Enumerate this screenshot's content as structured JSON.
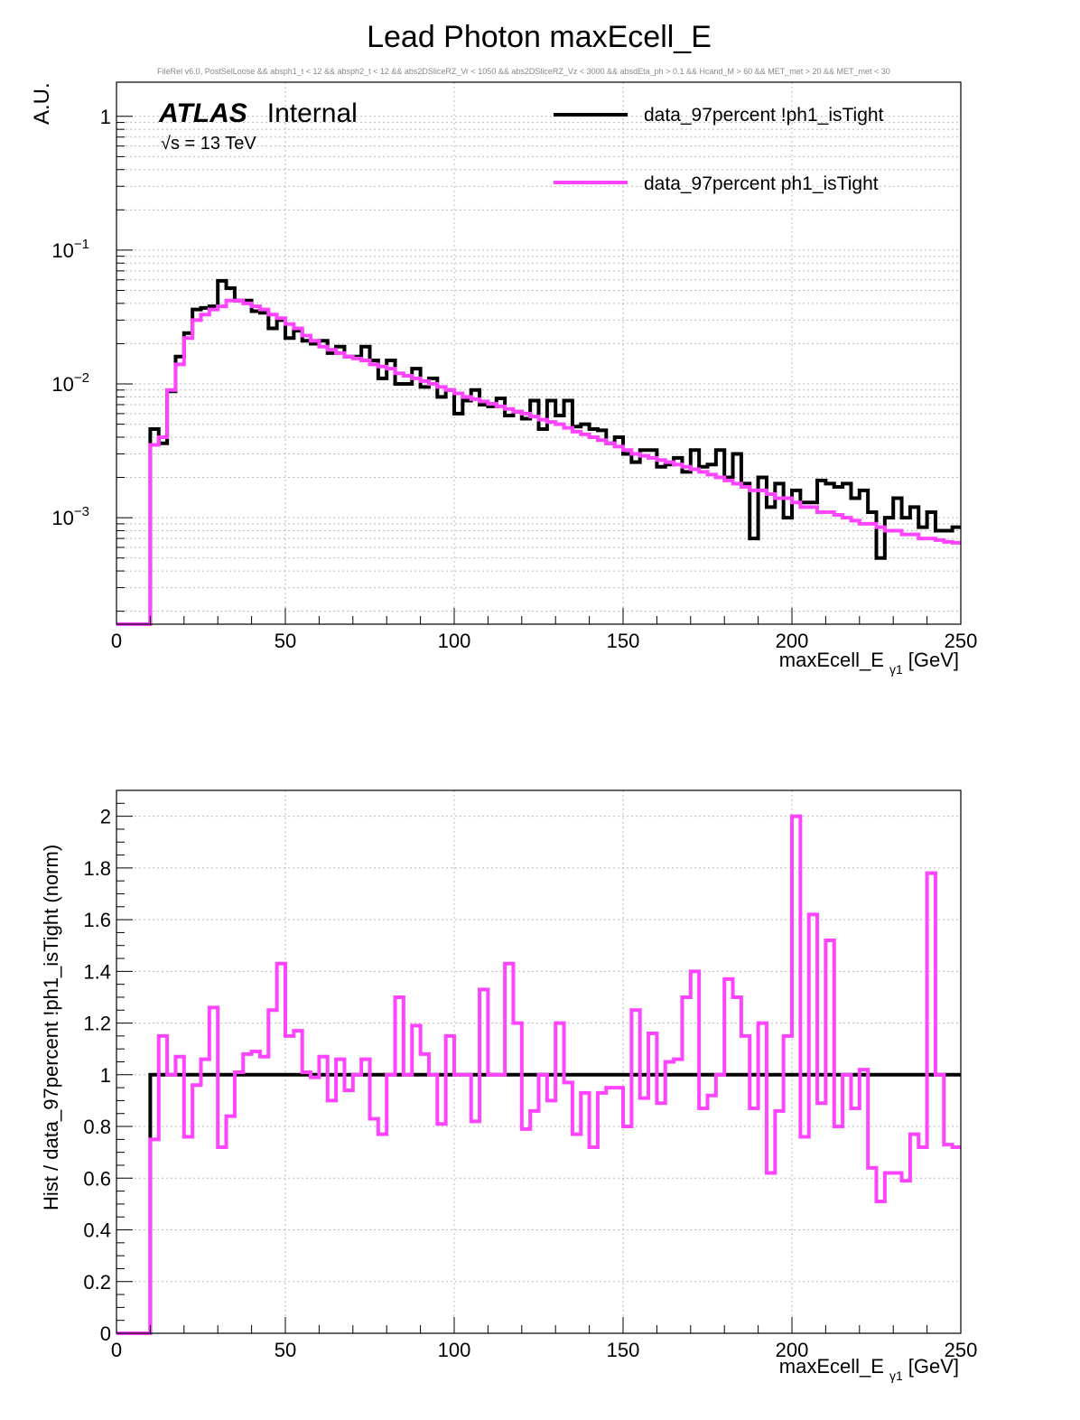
{
  "title": "Lead Photon maxEcell_E",
  "selection": "FileRel v6.0, PostSelLoose &&  absph1_t < 12 && absph2_t < 12 && abs2DSliceRZ_Vr < 1050 && abs2DSliceRZ_Vz < 3000 && absdEta_ph > 0.1 && Hcand_M > 60 && MET_met > 20 && MET_met < 30",
  "atlas": {
    "label": "ATLAS",
    "status": "Internal",
    "energy": "√s = 13 TeV"
  },
  "legend": [
    {
      "name": "data_97percent  !ph1_isTight",
      "color": "#000000"
    },
    {
      "name": "data_97percent  ph1_isTight",
      "color": "#ff44ff"
    }
  ],
  "chart_data": [
    {
      "type": "line",
      "drawstyle": "step",
      "yscale": "log",
      "title": "Lead Photon maxEcell_E",
      "xlabel_main": "maxEcell_E",
      "xlabel_sub": "γ1",
      "xlabel_unit": "[GeV]",
      "ylabel": "A.U.",
      "xlim": [
        0,
        250
      ],
      "ylim": [
        0.00016,
        1.8
      ],
      "bin_width": 2.5,
      "x_start": 0,
      "xticks": [
        0,
        50,
        100,
        150,
        200,
        250
      ],
      "yticks": [
        {
          "value": 1,
          "label": "1"
        },
        {
          "value": 0.1,
          "label": "10",
          "exp": "−1"
        },
        {
          "value": 0.01,
          "label": "10",
          "exp": "−2"
        },
        {
          "value": 0.001,
          "label": "10",
          "exp": "−3"
        }
      ],
      "series": [
        {
          "name": "data_97percent  !ph1_isTight",
          "color": "#000000",
          "values": [
            0,
            0,
            0,
            0,
            0.0046,
            0.0036,
            0.0088,
            0.016,
            0.024,
            0.036,
            0.037,
            0.038,
            0.059,
            0.052,
            0.042,
            0.042,
            0.035,
            0.034,
            0.026,
            0.03,
            0.022,
            0.025,
            0.021,
            0.02,
            0.021,
            0.017,
            0.019,
            0.016,
            0.016,
            0.019,
            0.015,
            0.011,
            0.015,
            0.01,
            0.01,
            0.013,
            0.0095,
            0.011,
            0.008,
            0.009,
            0.006,
            0.0075,
            0.009,
            0.007,
            0.0068,
            0.0078,
            0.0058,
            0.0062,
            0.0055,
            0.0075,
            0.0046,
            0.0075,
            0.0058,
            0.0075,
            0.0048,
            0.005,
            0.0046,
            0.0045,
            0.0036,
            0.004,
            0.003,
            0.0026,
            0.0032,
            0.0032,
            0.0024,
            0.0025,
            0.0028,
            0.0022,
            0.0032,
            0.0024,
            0.0025,
            0.0032,
            0.002,
            0.003,
            0.0018,
            0.0007,
            0.002,
            0.0012,
            0.0018,
            0.001,
            0.0016,
            0.0013,
            0.0013,
            0.0019,
            0.0018,
            0.0017,
            0.0018,
            0.0014,
            0.0016,
            0.0011,
            0.0005,
            0.001,
            0.0014,
            0.001,
            0.0012,
            0.00085,
            0.0011,
            0.0008,
            0.0008,
            0.00085
          ]
        },
        {
          "name": "data_97percent  ph1_isTight",
          "color": "#ff44ff",
          "values": [
            0,
            0,
            0,
            0,
            0.0035,
            0.004,
            0.009,
            0.014,
            0.022,
            0.03,
            0.033,
            0.036,
            0.038,
            0.042,
            0.042,
            0.04,
            0.038,
            0.036,
            0.033,
            0.031,
            0.028,
            0.026,
            0.023,
            0.021,
            0.019,
            0.018,
            0.017,
            0.016,
            0.0155,
            0.015,
            0.014,
            0.0135,
            0.013,
            0.012,
            0.0115,
            0.011,
            0.0105,
            0.01,
            0.0095,
            0.009,
            0.0085,
            0.008,
            0.0077,
            0.0074,
            0.0071,
            0.0068,
            0.0065,
            0.0062,
            0.006,
            0.0057,
            0.0054,
            0.0052,
            0.005,
            0.0047,
            0.0044,
            0.0042,
            0.004,
            0.0038,
            0.0036,
            0.0034,
            0.0032,
            0.003,
            0.0029,
            0.0028,
            0.0027,
            0.0026,
            0.0025,
            0.0024,
            0.0023,
            0.0022,
            0.0021,
            0.002,
            0.0019,
            0.0018,
            0.0017,
            0.0016,
            0.0016,
            0.0015,
            0.0014,
            0.0014,
            0.0013,
            0.0012,
            0.0012,
            0.0011,
            0.0011,
            0.00105,
            0.001,
            0.00095,
            0.0009,
            0.0009,
            0.00085,
            0.0008,
            0.0008,
            0.00075,
            0.00075,
            0.0007,
            0.0007,
            0.00068,
            0.00066,
            0.00065
          ]
        }
      ]
    },
    {
      "type": "line",
      "drawstyle": "step",
      "xlabel_main": "maxEcell_E",
      "xlabel_sub": "γ1",
      "xlabel_unit": "[GeV]",
      "ylabel": "Hist / data_97percent  !ph1_isTight (norm)",
      "xlim": [
        0,
        250
      ],
      "ylim": [
        0,
        2.1
      ],
      "bin_width": 2.5,
      "x_start": 0,
      "xticks": [
        0,
        50,
        100,
        150,
        200,
        250
      ],
      "yticks": [
        {
          "value": 0,
          "label": "0"
        },
        {
          "value": 0.2,
          "label": "0.2"
        },
        {
          "value": 0.4,
          "label": "0.4"
        },
        {
          "value": 0.6,
          "label": "0.6"
        },
        {
          "value": 0.8,
          "label": "0.8"
        },
        {
          "value": 1,
          "label": "1"
        },
        {
          "value": 1.2,
          "label": "1.2"
        },
        {
          "value": 1.4,
          "label": "1.4"
        },
        {
          "value": 1.6,
          "label": "1.6"
        },
        {
          "value": 1.8,
          "label": "1.8"
        },
        {
          "value": 2,
          "label": "2"
        }
      ],
      "series": [
        {
          "name": "data_97percent  !ph1_isTight",
          "color": "#000000",
          "values": [
            0,
            0,
            0,
            0,
            1,
            1,
            1,
            1,
            1,
            1,
            1,
            1,
            1,
            1,
            1,
            1,
            1,
            1,
            1,
            1,
            1,
            1,
            1,
            1,
            1,
            1,
            1,
            1,
            1,
            1,
            1,
            1,
            1,
            1,
            1,
            1,
            1,
            1,
            1,
            1,
            1,
            1,
            1,
            1,
            1,
            1,
            1,
            1,
            1,
            1,
            1,
            1,
            1,
            1,
            1,
            1,
            1,
            1,
            1,
            1,
            1,
            1,
            1,
            1,
            1,
            1,
            1,
            1,
            1,
            1,
            1,
            1,
            1,
            1,
            1,
            1,
            1,
            1,
            1,
            1,
            1,
            1,
            1,
            1,
            1,
            1,
            1,
            1,
            1,
            1,
            1,
            1,
            1,
            1,
            1,
            1,
            1,
            1,
            1,
            1
          ]
        },
        {
          "name": "data_97percent  ph1_isTight",
          "color": "#ff44ff",
          "values": [
            0,
            0,
            0,
            0,
            0.75,
            1.15,
            1.0,
            1.07,
            0.76,
            0.96,
            1.06,
            1.26,
            0.72,
            0.84,
            1.01,
            1.08,
            1.09,
            1.07,
            1.25,
            1.43,
            1.15,
            1.17,
            1.01,
            0.99,
            1.07,
            0.9,
            1.06,
            0.94,
            1.0,
            1.06,
            0.83,
            0.77,
            1.0,
            1.3,
            1.0,
            1.19,
            1.08,
            1.0,
            0.81,
            1.15,
            1.0,
            1.0,
            0.82,
            1.33,
            1.0,
            1.0,
            1.43,
            1.2,
            0.79,
            0.86,
            1.0,
            0.9,
            1.2,
            0.97,
            0.77,
            0.93,
            0.72,
            0.93,
            0.95,
            0.95,
            0.8,
            1.25,
            0.91,
            1.16,
            0.89,
            1.05,
            1.06,
            1.3,
            1.4,
            0.87,
            0.92,
            1.0,
            1.37,
            1.3,
            1.15,
            0.87,
            1.2,
            0.62,
            0.86,
            1.15,
            2.0,
            0.76,
            1.62,
            0.89,
            1.52,
            0.8,
            1.0,
            0.87,
            1.02,
            0.64,
            0.51,
            0.62,
            0.62,
            0.59,
            0.77,
            0.72,
            1.78,
            1.0,
            0.73,
            0.72
          ]
        }
      ]
    }
  ]
}
